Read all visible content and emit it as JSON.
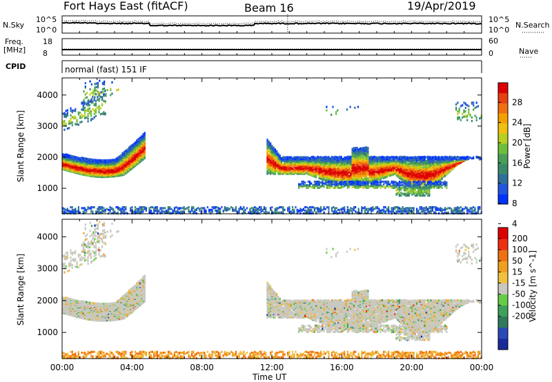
{
  "header": {
    "title": "Fort Hays East (fitACF)",
    "beam": "Beam 16",
    "date": "19/Apr/2019"
  },
  "top_panels": {
    "nsky": {
      "label": "N.Sky",
      "left_ticks": [
        "10^5",
        "10^0"
      ]
    },
    "nsearch": {
      "label": "N.Search",
      "right_ticks": [
        "10^5",
        "10^0"
      ]
    },
    "freq": {
      "label_line1": "Freq.",
      "label_line2": "[MHz]",
      "left_ticks": [
        "18",
        "8"
      ]
    },
    "nave": {
      "label": "Nave",
      "right_ticks": [
        "60",
        "0"
      ]
    },
    "cpid": {
      "label": "CPID",
      "text": "normal (fast) 151 IF"
    }
  },
  "chart_data": [
    {
      "type": "heatmap",
      "name": "power",
      "ylabel": "Slant Range [km]",
      "yticks": [
        1000,
        2000,
        3000,
        4000
      ],
      "ylim": [
        180,
        4550
      ],
      "xlabel": "Time UT",
      "xticks": [
        "00:00",
        "04:00",
        "08:00",
        "12:00",
        "16:00",
        "20:00",
        "00:00"
      ],
      "xlim_hours": [
        0,
        24
      ],
      "colorbar": {
        "label": "Power [dB]",
        "ticks": [
          "28",
          "24",
          "20",
          "16",
          "12",
          "8",
          "4"
        ],
        "colors": [
          "#0033ff",
          "#2255dd",
          "#2f6f9a",
          "#3a8a6a",
          "#4a9e58",
          "#6cbf3a",
          "#b8d020",
          "#f0c010",
          "#f5a000",
          "#f07010",
          "#e84010",
          "#dd0000"
        ]
      }
    },
    {
      "type": "heatmap",
      "name": "velocity",
      "ylabel": "Slant Range [km]",
      "yticks": [
        1000,
        2000,
        3000,
        4000
      ],
      "ylim": [
        180,
        4550
      ],
      "xlabel": "Time UT",
      "xticks": [
        "00:00",
        "04:00",
        "08:00",
        "12:00",
        "16:00",
        "20:00",
        "00:00"
      ],
      "xlim_hours": [
        0,
        24
      ],
      "colorbar": {
        "label": "Velocity [m s^-1]",
        "ticks": [
          "200",
          "100",
          "50",
          "15",
          "-15",
          "-50",
          "-100",
          "-200"
        ],
        "colors": [
          "#1a2a9a",
          "#2a4ab8",
          "#2f7a5a",
          "#3ea05a",
          "#66cc44",
          "#c8c8c0",
          "#f0c040",
          "#f0a020",
          "#f07010",
          "#ee3010",
          "#dd0000"
        ]
      }
    }
  ],
  "axis": {
    "xlabel": "Time UT"
  }
}
